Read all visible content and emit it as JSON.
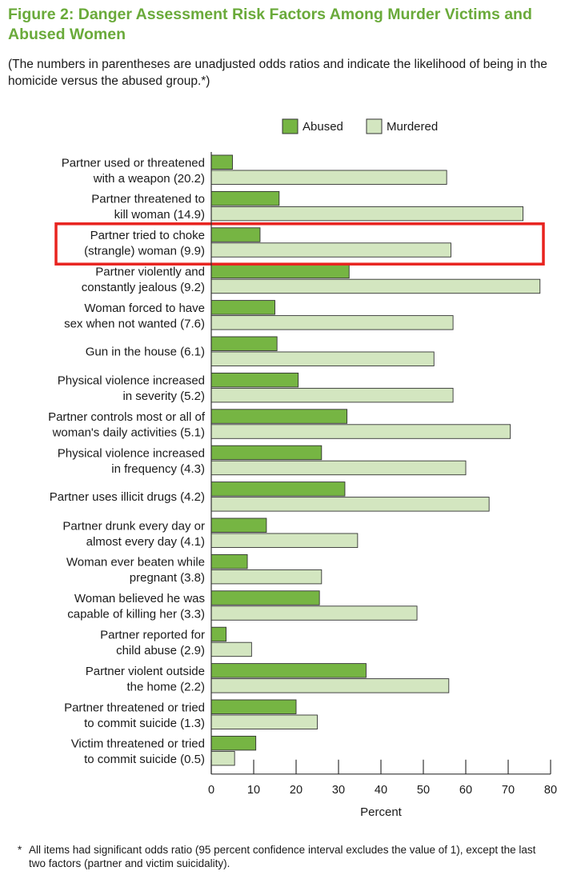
{
  "figure": {
    "title": "Figure 2: Danger Assessment Risk Factors Among Murder Victims and Abused Women",
    "subtitle": "(The numbers in parentheses are unadjusted odds ratios and indicate the likelihood of being in the homicide versus the abused group.*)",
    "footnote_marker": "*",
    "footnote": "All items had significant odds ratio (95 percent confidence interval excludes the value of 1), except the last two factors (partner and victim suicidality).",
    "title_color": "#6aaa3a",
    "highlight_color": "#e8231f"
  },
  "chart_data": {
    "type": "bar",
    "orientation": "horizontal",
    "xlabel": "Percent",
    "xlim": [
      0,
      80
    ],
    "xticks": [
      0,
      10,
      20,
      30,
      40,
      50,
      60,
      70,
      80
    ],
    "legend_position": "top-right",
    "grid": false,
    "highlighted_category_index": 2,
    "categories": [
      [
        "Partner used or threatened",
        "with a weapon (20.2)"
      ],
      [
        "Partner threatened to",
        "kill woman (14.9)"
      ],
      [
        "Partner tried to choke",
        "(strangle) woman (9.9)"
      ],
      [
        "Partner violently and",
        "constantly jealous (9.2)"
      ],
      [
        "Woman forced to have",
        "sex when not wanted (7.6)"
      ],
      [
        "Gun in the house (6.1)"
      ],
      [
        "Physical violence increased",
        "in severity (5.2)"
      ],
      [
        "Partner controls most or all of",
        "woman's daily activities (5.1)"
      ],
      [
        "Physical violence increased",
        "in frequency (4.3)"
      ],
      [
        "Partner uses illicit drugs (4.2)"
      ],
      [
        "Partner drunk every day or",
        "almost every day (4.1)"
      ],
      [
        "Woman ever beaten while",
        "pregnant (3.8)"
      ],
      [
        "Woman believed he was",
        "capable of killing her (3.3)"
      ],
      [
        "Partner reported for",
        "child abuse (2.9)"
      ],
      [
        "Partner violent outside",
        "the home (2.2)"
      ],
      [
        "Partner threatened or tried",
        "to commit suicide (1.3)"
      ],
      [
        "Victim threatened or tried",
        "to commit suicide (0.5)"
      ]
    ],
    "series": [
      {
        "name": "Abused",
        "color": "#76b543",
        "values": [
          5,
          16,
          11.5,
          32.5,
          15,
          15.5,
          20.5,
          32,
          26,
          31.5,
          13,
          8.5,
          25.5,
          3.5,
          36.5,
          20,
          10.5
        ]
      },
      {
        "name": "Murdered",
        "color": "#d3e6c0",
        "values": [
          55.5,
          73.5,
          56.5,
          77.5,
          57,
          52.5,
          57,
          70.5,
          60,
          65.5,
          34.5,
          26,
          48.5,
          9.5,
          56,
          25,
          5.5
        ]
      }
    ]
  }
}
